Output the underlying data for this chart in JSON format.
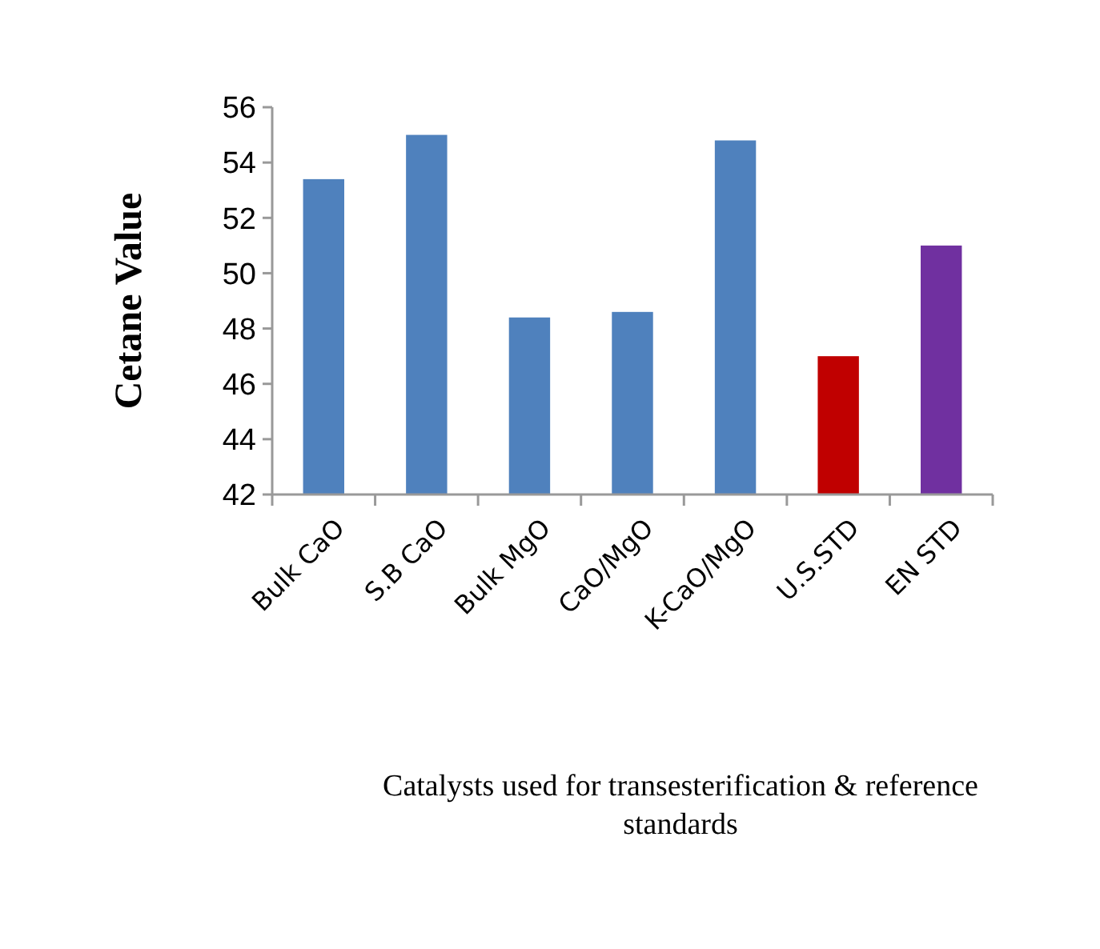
{
  "chart_data": {
    "type": "bar",
    "ylabel": "Cetane Value",
    "xlabel": "Catalysts used for transesterification & reference standards",
    "categories": [
      "Bulk CaO",
      "S.B CaO",
      "Bulk MgO",
      "CaO/MgO",
      "K-CaO/MgO",
      "U.S.STD",
      "EN STD"
    ],
    "values": [
      53.4,
      55.0,
      48.4,
      48.6,
      54.8,
      47.0,
      51.0
    ],
    "colors": [
      "#4f81bd",
      "#4f81bd",
      "#4f81bd",
      "#4f81bd",
      "#4f81bd",
      "#c00000",
      "#7030a0"
    ],
    "ylim": [
      42,
      56
    ],
    "yticks": [
      42,
      44,
      46,
      48,
      50,
      52,
      54,
      56
    ],
    "grid": false
  }
}
